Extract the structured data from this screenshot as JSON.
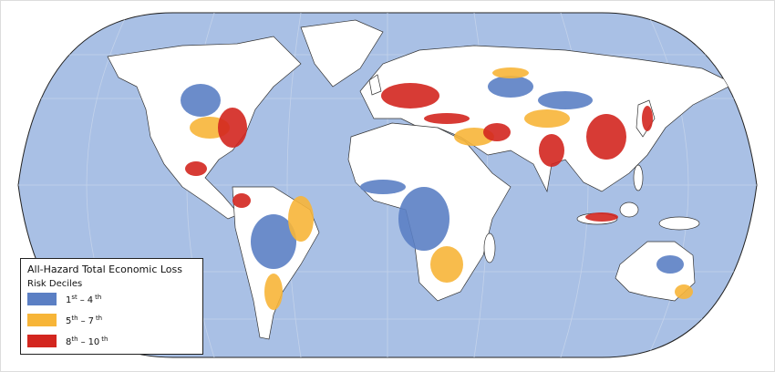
{
  "legend": {
    "title": "All-Hazard Total Economic Loss",
    "subtitle": "Risk Deciles",
    "items": [
      {
        "color": "#5b7fc4",
        "from": "1",
        "from_sup": "st",
        "dash": "–",
        "to": "4",
        "to_sup": "th"
      },
      {
        "color": "#f7b538",
        "from": "5",
        "from_sup": "th",
        "dash": "–",
        "to": "7",
        "to_sup": "th"
      },
      {
        "color": "#d3261f",
        "from": "8",
        "from_sup": "th",
        "dash": "–",
        "to": "10",
        "to_sup": "th"
      }
    ]
  }
}
